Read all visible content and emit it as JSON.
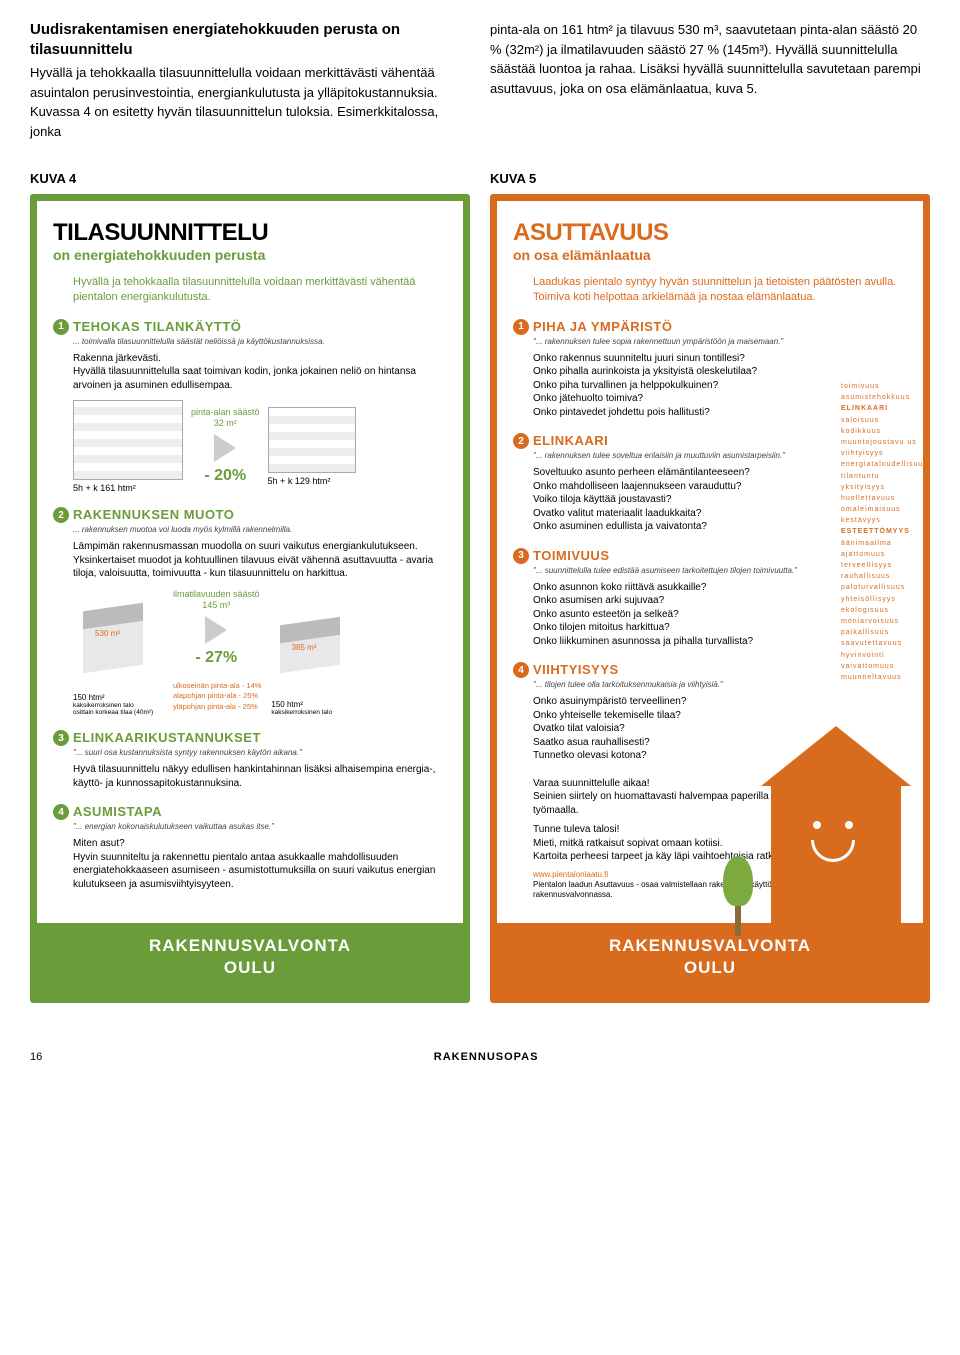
{
  "intro": {
    "heading": "Uudisrakentamisen energiatehokkuuden perusta on tilasuunnittelu",
    "left": "Hyvällä ja tehokkaalla tilasuunnittelulla voidaan merkittävästi vähentää asuintalon perusinvestointia, energiankulutusta ja ylläpitokustannuksia. Kuvassa 4 on esitetty hyvän tilasuunnittelun tuloksia. Esimerkkitalossa, jonka",
    "right": "pinta-ala on 161 htm² ja tilavuus 530 m³, saavutetaan pinta-alan säästö 20 % (32m²) ja ilmatilavuuden säästö 27 % (145m³). Hyvällä suunnittelulla säästää luontoa ja rahaa. Lisäksi hyvällä suunnittelulla savutetaan parempi asuttavuus, joka on osa elämänlaatua, kuva 5."
  },
  "labels": {
    "k4": "KUVA 4",
    "k5": "KUVA 5"
  },
  "green": {
    "title": "TILASUUNNITTELU",
    "sub": "on energiatehokkuuden perusta",
    "blurb": "Hyvällä ja tehokkaalla tilasuunnittelulla voidaan merkittävästi vähentää pientalon energiankulutusta.",
    "s1": {
      "title": "TEHOKAS TILANKÄYTTÖ",
      "quote": "... toimivalla tilasuunnittelulla säästät neliöissä ja käyttökustannuksissa.",
      "body": "Rakenna järkevästi.\nHyvällä tilasuunnittelulla saat toimivan kodin, jonka jokainen neliö on hintansa arvoinen ja asuminen edullisempaa.",
      "save_label": "pinta-alan säästö",
      "save_val": "32 m²",
      "pct": "- 20%",
      "fp1": "5h + k 161 htm²",
      "fp2": "5h + k 129 htm²"
    },
    "s2": {
      "title": "RAKENNUKSEN MUOTO",
      "quote": "... rakennuksen muotoa voi luoda myös kylmillä rakennelmilla.",
      "body": "Lämpimän rakennusmassan muodolla on suuri vaikutus energiankulutukseen. Yksinkertaiset muodot ja kohtuullinen tilavuus eivät vähennä asuttavuutta - avaria tiloja, valoisuutta, toimivuutta - kun tilasuunnittelu on harkittua.",
      "save_label": "ilmatilavuuden säästö",
      "save_val": "145 m³",
      "pct": "- 27%",
      "vol1": "530 m³",
      "vol2": "385 m³",
      "h1": "150 htm²",
      "h1sub": "kaksikerroksinen talo\nosittain korkeaa tilaa (40m²)",
      "h2": "150 htm²",
      "h2sub": "kaksikerroksinen talo",
      "r1": "ulkoseinän pinta-ala",
      "r1v": "- 14%",
      "r2": "alapohjan pinta-ala",
      "r2v": "- 25%",
      "r3": "yläpohjan pinta-ala",
      "r3v": "- 25%"
    },
    "s3": {
      "title": "ELINKAARIKUSTANNUKSET",
      "quote": "\"... suuri osa kustannuksista syntyy rakennuksen käytön aikana.\"",
      "body": "Hyvä tilasuunnittelu näkyy edullisen hankintahinnan lisäksi alhaisempina energia-, käyttö- ja kunnossapitokustannuksina."
    },
    "s4": {
      "title": "ASUMISTAPA",
      "quote": "\"... energian kokonaiskulutukseen vaikuttaa asukas itse.\"",
      "body": "Miten asut?\nHyvin suunniteltu ja rakennettu pientalo antaa asukkaalle mahdollisuuden energiatehokkaaseen asumiseen - asumistottumuksilla on suuri vaikutus energian kulutukseen ja asumisviihtyisyyteen."
    },
    "footer1": "RAKENNUSVALVONTA",
    "footer2": "OULU"
  },
  "orange": {
    "title": "ASUTTAVUUS",
    "sub": "on osa elämänlaatua",
    "blurb": "Laadukas pientalo syntyy hyvän suunnittelun ja tietoisten päätösten avulla.\nToimiva koti helpottaa arkielämää ja nostaa elämänlaatua.",
    "s1": {
      "title": "PIHA JA YMPÄRISTÖ",
      "quote": "\"... rakennuksen tulee sopia rakennettuun ympäristöön ja maisemaan.\"",
      "body": "Onko rakennus suunniteltu juuri sinun tontillesi?\nOnko pihalla aurinkoista ja yksityistä oleskelutilaa?\nOnko piha turvallinen ja helppokulkuinen?\nOnko jätehuolto toimiva?\nOnko pintavedet johdettu pois hallitusti?"
    },
    "s2": {
      "title": "ELINKAARI",
      "quote": "\"... rakennuksen tulee soveltua erilaisiin ja muuttuviin asumistarpeisiin.\"",
      "body": "Soveltuuko asunto perheen elämäntilanteeseen?\nOnko mahdolliseen laajennukseen varauduttu?\nVoiko tiloja käyttää joustavasti?\nOvatko valitut materiaalit laadukkaita?\nOnko asuminen edullista ja vaivatonta?"
    },
    "s3": {
      "title": "TOIMIVUUS",
      "quote": "\"... suunnittelulla tulee edistää asumiseen tarkoitettujen tilojen toimivuutta.\"",
      "body": "Onko asunnon koko riittävä asukkaille?\nOnko asumisen arki sujuvaa?\nOnko asunto esteetön ja selkeä?\nOnko tilojen mitoitus harkittua?\nOnko liikkuminen asunnossa ja pihalla turvallista?"
    },
    "s4": {
      "title": "VIIHTYISYYS",
      "quote": "\"... tilojen tulee olla tarkoituksenmukaisia ja viihtyisiä.\"",
      "body": "Onko asuinympäristö terveellinen?\nOnko yhteiselle tekemiselle tilaa?\nOvatko tilat valoisia?\nSaatko asua rauhallisesti?\nTunnetko olevasi kotona?"
    },
    "closing1": "Varaa suunnittelulle aikaa!\nSeinien siirtely on huomattavasti halvempaa paperilla kuin työmaalla.",
    "closing2": "Tunne tuleva talosi!\nMieti, mitkä ratkaisut sopivat omaan kotiisi.\nKartoita perheesi tarpeet ja käy läpi vaihtoehtoisia ratkaisuja.",
    "link": "www.pientalonlaatu.fi",
    "linksub": "Pientalon laadun Asuttavuus - osaa valmistellaan rakentajien käyttöön Oulun rakennusvalvonnassa.",
    "footer1": "RAKENNUSVALVONTA",
    "footer2": "OULU",
    "sidelist": [
      "toimivuus",
      "asumistehokkuus",
      "ELINKAARI",
      "valoisuus",
      "kodikkuus",
      "muuntojoustavu us",
      "viihtyisyys",
      "energiataloudellisuus",
      "tilantuntu",
      "yksityisyys",
      "huollettavuus",
      "omaleimaisuus",
      "kestävyys",
      "ESTEETTÖMYYS",
      "äänimaailma",
      "ajattomuus",
      "terveellisyys",
      "rauhallisuus",
      "paloturvallisuus",
      "yhteisöllisyys",
      "ekologisuus",
      "moniarvoisuus",
      "paikallisuus",
      "saavutettavuus",
      "hyvinvointi",
      "vaivattomuus",
      "muunneltavuus"
    ]
  },
  "foot": {
    "page": "16",
    "caption": "RAKENNUSOPAS"
  }
}
